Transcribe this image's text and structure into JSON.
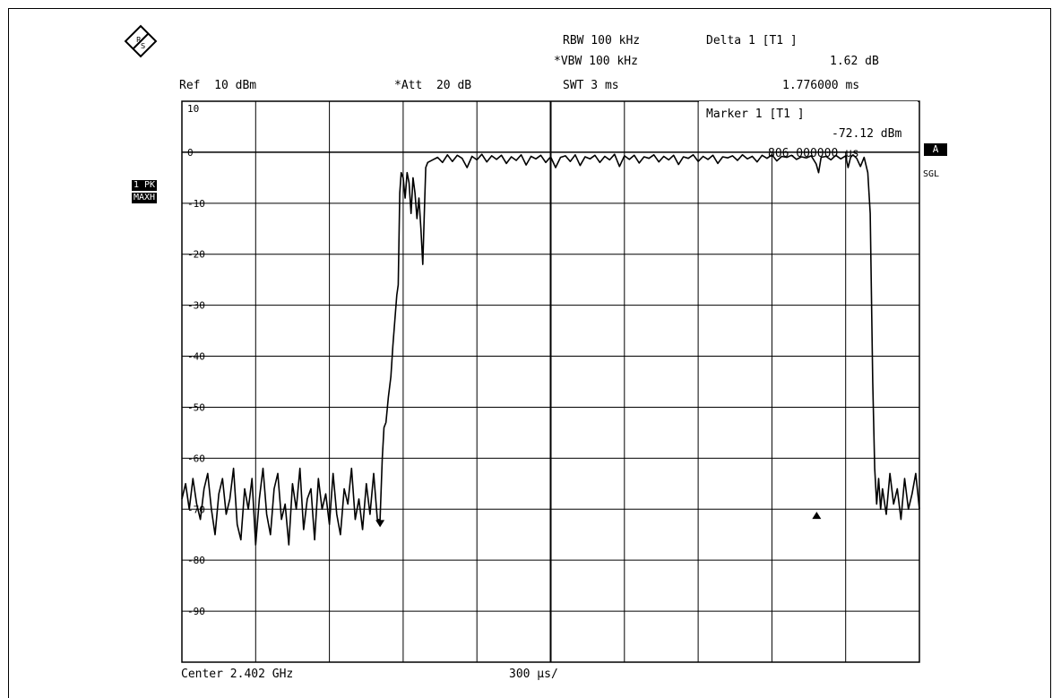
{
  "header": {
    "ref": "Ref  10 dBm",
    "att": "*Att  20 dB",
    "rbw": "RBW 100 kHz",
    "vbw": "*VBW 100 kHz",
    "swt": "SWT 3 ms",
    "delta_title": "Delta 1 [T1 ]",
    "delta_value": "1.62 dB",
    "delta_time": "1.776000 ms"
  },
  "marker": {
    "title": "Marker 1 [T1 ]",
    "level": "-72.12 dBm",
    "time": "806.000000 µs"
  },
  "side_labels": {
    "trace_mode_1": "1 PK",
    "trace_mode_2": "MAXH",
    "a_badge": "A",
    "sgl": "SGL"
  },
  "footer": {
    "center": "Center 2.402 GHz",
    "span_per_div": "300 µs/"
  },
  "chart_data": {
    "type": "line",
    "xlabel": "",
    "ylabel": "",
    "x_unit": "µs",
    "xlim": [
      0,
      3000
    ],
    "ylim": [
      -100,
      10
    ],
    "y_tick_labels": [
      "10",
      "0",
      "-10",
      "-20",
      "-30",
      "-40",
      "-50",
      "-60",
      "-70",
      "-80",
      "-90"
    ],
    "y_tick_values": [
      10,
      0,
      -10,
      -20,
      -30,
      -40,
      -50,
      -60,
      -70,
      -80,
      -90
    ],
    "x_divisions": 10,
    "grid": true,
    "reference_level_line": 0,
    "series": [
      {
        "values": [
          [
            0,
            -68
          ],
          [
            15,
            -65
          ],
          [
            30,
            -70
          ],
          [
            45,
            -64
          ],
          [
            60,
            -69
          ],
          [
            75,
            -72
          ],
          [
            90,
            -66
          ],
          [
            105,
            -63
          ],
          [
            120,
            -70
          ],
          [
            135,
            -75
          ],
          [
            150,
            -67
          ],
          [
            165,
            -64
          ],
          [
            180,
            -71
          ],
          [
            195,
            -68
          ],
          [
            210,
            -62
          ],
          [
            225,
            -73
          ],
          [
            240,
            -76
          ],
          [
            255,
            -66
          ],
          [
            270,
            -70
          ],
          [
            285,
            -64
          ],
          [
            300,
            -77
          ],
          [
            315,
            -68
          ],
          [
            330,
            -62
          ],
          [
            345,
            -71
          ],
          [
            360,
            -75
          ],
          [
            375,
            -66
          ],
          [
            390,
            -63
          ],
          [
            405,
            -72
          ],
          [
            420,
            -69
          ],
          [
            435,
            -77
          ],
          [
            450,
            -65
          ],
          [
            465,
            -70
          ],
          [
            480,
            -62
          ],
          [
            495,
            -74
          ],
          [
            510,
            -68
          ],
          [
            525,
            -66
          ],
          [
            540,
            -76
          ],
          [
            555,
            -64
          ],
          [
            570,
            -70
          ],
          [
            585,
            -67
          ],
          [
            600,
            -73
          ],
          [
            615,
            -63
          ],
          [
            630,
            -71
          ],
          [
            645,
            -75
          ],
          [
            660,
            -66
          ],
          [
            675,
            -69
          ],
          [
            690,
            -62
          ],
          [
            705,
            -72
          ],
          [
            720,
            -68
          ],
          [
            735,
            -74
          ],
          [
            750,
            -65
          ],
          [
            765,
            -71
          ],
          [
            780,
            -63
          ],
          [
            795,
            -72
          ],
          [
            806,
            -72.12
          ],
          [
            815,
            -60
          ],
          [
            822,
            -54
          ],
          [
            830,
            -53
          ],
          [
            840,
            -48
          ],
          [
            850,
            -44
          ],
          [
            858,
            -38
          ],
          [
            866,
            -33
          ],
          [
            874,
            -28
          ],
          [
            880,
            -26
          ],
          [
            886,
            -8
          ],
          [
            892,
            -4
          ],
          [
            900,
            -5
          ],
          [
            908,
            -9
          ],
          [
            916,
            -4
          ],
          [
            924,
            -6
          ],
          [
            932,
            -12
          ],
          [
            940,
            -5
          ],
          [
            948,
            -8
          ],
          [
            956,
            -13
          ],
          [
            964,
            -9
          ],
          [
            972,
            -15
          ],
          [
            980,
            -22
          ],
          [
            986,
            -12
          ],
          [
            992,
            -3
          ],
          [
            1000,
            -2
          ],
          [
            1020,
            -1.5
          ],
          [
            1040,
            -1
          ],
          [
            1060,
            -2
          ],
          [
            1080,
            -0.5
          ],
          [
            1100,
            -1.8
          ],
          [
            1120,
            -0.6
          ],
          [
            1140,
            -1.2
          ],
          [
            1160,
            -3
          ],
          [
            1180,
            -0.8
          ],
          [
            1200,
            -1.5
          ],
          [
            1220,
            -0.4
          ],
          [
            1240,
            -1.9
          ],
          [
            1260,
            -0.7
          ],
          [
            1280,
            -1.4
          ],
          [
            1300,
            -0.6
          ],
          [
            1320,
            -2.2
          ],
          [
            1340,
            -0.9
          ],
          [
            1360,
            -1.6
          ],
          [
            1380,
            -0.5
          ],
          [
            1400,
            -2.5
          ],
          [
            1420,
            -0.8
          ],
          [
            1440,
            -1.3
          ],
          [
            1460,
            -0.6
          ],
          [
            1480,
            -2
          ],
          [
            1500,
            -0.9
          ],
          [
            1520,
            -3
          ],
          [
            1540,
            -1
          ],
          [
            1560,
            -0.7
          ],
          [
            1580,
            -1.8
          ],
          [
            1600,
            -0.5
          ],
          [
            1620,
            -2.6
          ],
          [
            1640,
            -0.9
          ],
          [
            1660,
            -1.3
          ],
          [
            1680,
            -0.6
          ],
          [
            1700,
            -2
          ],
          [
            1720,
            -0.8
          ],
          [
            1740,
            -1.5
          ],
          [
            1760,
            -0.4
          ],
          [
            1780,
            -2.8
          ],
          [
            1800,
            -0.7
          ],
          [
            1820,
            -1.4
          ],
          [
            1840,
            -0.6
          ],
          [
            1860,
            -2.1
          ],
          [
            1880,
            -0.9
          ],
          [
            1900,
            -1.2
          ],
          [
            1920,
            -0.5
          ],
          [
            1940,
            -1.9
          ],
          [
            1960,
            -0.8
          ],
          [
            1980,
            -1.5
          ],
          [
            2000,
            -0.6
          ],
          [
            2020,
            -2.4
          ],
          [
            2040,
            -0.9
          ],
          [
            2060,
            -1.2
          ],
          [
            2080,
            -0.5
          ],
          [
            2100,
            -1.8
          ],
          [
            2120,
            -0.8
          ],
          [
            2140,
            -1.4
          ],
          [
            2160,
            -0.6
          ],
          [
            2180,
            -2.2
          ],
          [
            2200,
            -0.9
          ],
          [
            2220,
            -1.1
          ],
          [
            2240,
            -0.7
          ],
          [
            2260,
            -1.6
          ],
          [
            2280,
            -0.5
          ],
          [
            2300,
            -1.3
          ],
          [
            2320,
            -0.8
          ],
          [
            2340,
            -1.9
          ],
          [
            2360,
            -0.6
          ],
          [
            2380,
            -1.2
          ],
          [
            2400,
            -0.5
          ],
          [
            2420,
            -1.7
          ],
          [
            2440,
            -0.8
          ],
          [
            2460,
            -1
          ],
          [
            2480,
            -0.6
          ],
          [
            2500,
            -1.4
          ],
          [
            2520,
            -0.9
          ],
          [
            2540,
            -1.1
          ],
          [
            2560,
            -0.7
          ],
          [
            2580,
            -2.3
          ],
          [
            2590,
            -4
          ],
          [
            2600,
            -1
          ],
          [
            2620,
            -0.8
          ],
          [
            2640,
            -1.5
          ],
          [
            2660,
            -0.6
          ],
          [
            2680,
            -1.3
          ],
          [
            2700,
            -0.7
          ],
          [
            2710,
            -3
          ],
          [
            2720,
            -1
          ],
          [
            2730,
            -0.5
          ],
          [
            2745,
            -1.2
          ],
          [
            2760,
            -2.8
          ],
          [
            2775,
            -1
          ],
          [
            2790,
            -4
          ],
          [
            2800,
            -12
          ],
          [
            2810,
            -45
          ],
          [
            2818,
            -62
          ],
          [
            2826,
            -69
          ],
          [
            2834,
            -64
          ],
          [
            2842,
            -70
          ],
          [
            2850,
            -66
          ],
          [
            2865,
            -71
          ],
          [
            2880,
            -63
          ],
          [
            2895,
            -69
          ],
          [
            2910,
            -66
          ],
          [
            2925,
            -72
          ],
          [
            2940,
            -64
          ],
          [
            2955,
            -70
          ],
          [
            2970,
            -67
          ],
          [
            2985,
            -63
          ],
          [
            3000,
            -70
          ]
        ]
      }
    ],
    "markers": [
      {
        "label": "marker-1",
        "x": 806,
        "y": -72.12
      },
      {
        "label": "delta-1",
        "x": 2582,
        "y": -70.5
      }
    ]
  }
}
